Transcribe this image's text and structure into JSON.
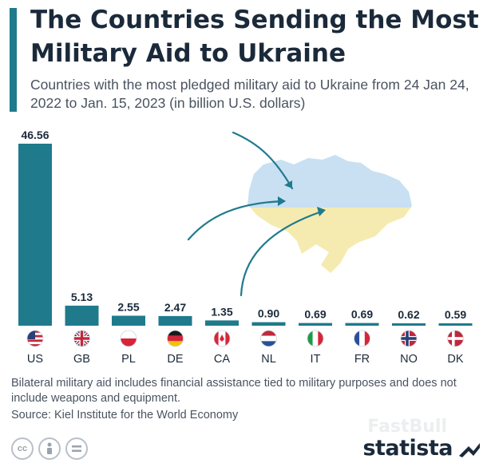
{
  "header": {
    "title": "The Countries Sending the Most Military Aid to Ukraine",
    "subtitle": "Countries with the most pledged military aid to Ukraine from 24 Jan 24, 2022 to Jan. 15, 2023  (in billion U.S. dollars)"
  },
  "chart_data": {
    "type": "bar",
    "title": "The Countries Sending the Most Military Aid to Ukraine",
    "subtitle": "Countries with the most pledged military aid to Ukraine from 24 Jan 24, 2022 to Jan. 15, 2023  (in billion U.S. dollars)",
    "categories": [
      "US",
      "GB",
      "PL",
      "DE",
      "CA",
      "NL",
      "IT",
      "FR",
      "NO",
      "DK"
    ],
    "values": [
      46.56,
      5.13,
      2.55,
      2.47,
      1.35,
      0.9,
      0.69,
      0.69,
      0.62,
      0.59
    ],
    "value_labels": [
      "46.56",
      "5.13",
      "2.55",
      "2.47",
      "1.35",
      "0.90",
      "0.69",
      "0.69",
      "0.62",
      "0.59"
    ],
    "xlabel": "",
    "ylabel": "",
    "ylim": [
      0,
      46.56
    ],
    "grid": false,
    "bar_color": "#1f7a8c"
  },
  "flags": [
    {
      "code": "US",
      "icon": "us-flag-icon"
    },
    {
      "code": "GB",
      "icon": "gb-flag-icon"
    },
    {
      "code": "PL",
      "icon": "pl-flag-icon"
    },
    {
      "code": "DE",
      "icon": "de-flag-icon"
    },
    {
      "code": "CA",
      "icon": "ca-flag-icon"
    },
    {
      "code": "NL",
      "icon": "nl-flag-icon"
    },
    {
      "code": "IT",
      "icon": "it-flag-icon"
    },
    {
      "code": "FR",
      "icon": "fr-flag-icon"
    },
    {
      "code": "NO",
      "icon": "no-flag-icon"
    },
    {
      "code": "DK",
      "icon": "dk-flag-icon"
    }
  ],
  "illustration": {
    "icon": "ukraine-map-icon",
    "colors": {
      "top": "#c8e0f2",
      "bottom": "#f5ebb0",
      "arrow": "#1f7a8c"
    }
  },
  "footer": {
    "note": "Bilateral military aid includes financial assistance tied to military purposes and does not include weapons and equipment.",
    "source": "Source: Kiel Institute for the World Economy",
    "brand": "statista",
    "watermark": "FastBull",
    "license_icons": [
      "cc-icon",
      "attribution-icon",
      "no-derivatives-icon"
    ]
  },
  "colors": {
    "accent": "#1f7a8c",
    "text_dark": "#1b2a3a",
    "text_gray": "#4a5360"
  }
}
